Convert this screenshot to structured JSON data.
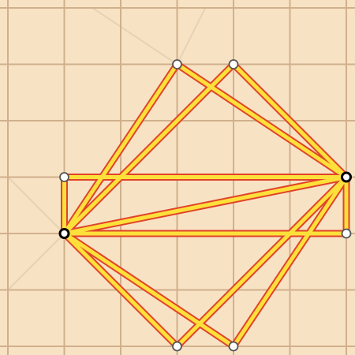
{
  "puzzle": {
    "grid_size": 6,
    "colors": {
      "background": "#f8e2c4",
      "grid_line": "#d0b08c",
      "hint_line": "#e6d2b4",
      "edge_outline": "#e0442a",
      "edge_fill": "#fde03a",
      "node_fill": "#ffffff",
      "node_border": "#555555",
      "node_selected_border": "#000000"
    },
    "hint_lines": [
      {
        "from": [
          0,
          3
        ],
        "to": [
          1,
          4
        ]
      },
      {
        "from": [
          0,
          5
        ],
        "to": [
          1,
          4
        ]
      },
      {
        "from": [
          1.5,
          0
        ],
        "to": [
          3,
          1
        ]
      },
      {
        "from": [
          3.5,
          0
        ],
        "to": [
          3,
          1
        ]
      },
      {
        "from": [
          3,
          0
        ],
        "to": [
          3,
          1
        ]
      }
    ],
    "nodes": [
      {
        "id": "n1",
        "x": 3,
        "y": 1,
        "selected": false
      },
      {
        "id": "n2",
        "x": 4,
        "y": 1,
        "selected": false
      },
      {
        "id": "n3",
        "x": 1,
        "y": 3,
        "selected": false
      },
      {
        "id": "n4",
        "x": 6,
        "y": 3,
        "selected": true
      },
      {
        "id": "n5",
        "x": 1,
        "y": 4,
        "selected": true
      },
      {
        "id": "n6",
        "x": 6,
        "y": 4,
        "selected": false
      },
      {
        "id": "n7",
        "x": 3,
        "y": 6,
        "selected": false
      },
      {
        "id": "n8",
        "x": 4,
        "y": 6,
        "selected": false
      }
    ],
    "edges": [
      [
        "n1",
        "n5"
      ],
      [
        "n1",
        "n4"
      ],
      [
        "n2",
        "n5"
      ],
      [
        "n2",
        "n4"
      ],
      [
        "n3",
        "n4"
      ],
      [
        "n3",
        "n5"
      ],
      [
        "n5",
        "n4"
      ],
      [
        "n5",
        "n6"
      ],
      [
        "n4",
        "n6"
      ],
      [
        "n5",
        "n7"
      ],
      [
        "n5",
        "n8"
      ],
      [
        "n7",
        "n4"
      ],
      [
        "n8",
        "n4"
      ]
    ]
  }
}
